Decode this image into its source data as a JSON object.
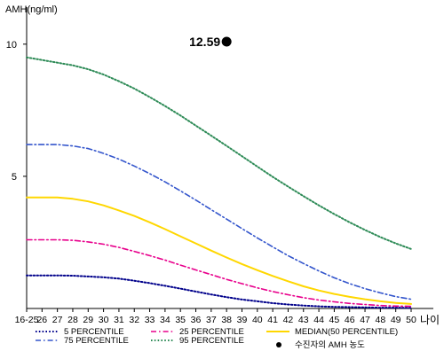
{
  "chart_data": {
    "type": "line",
    "ylabel": "AMH(ng/ml)",
    "xlabel": "나이",
    "categories": [
      "16-25",
      "26",
      "27",
      "28",
      "29",
      "30",
      "31",
      "32",
      "33",
      "34",
      "35",
      "36",
      "37",
      "38",
      "39",
      "40",
      "41",
      "42",
      "43",
      "44",
      "45",
      "46",
      "47",
      "48",
      "49",
      "50"
    ],
    "y_ticks": [
      5,
      10
    ],
    "ylim": [
      0,
      11
    ],
    "grid": false,
    "legend_position": "bottom",
    "series": [
      {
        "name": "5 PERCENTILE",
        "color": "#00008B",
        "dash": "dot",
        "values": [
          1.25,
          1.25,
          1.25,
          1.24,
          1.21,
          1.18,
          1.13,
          1.05,
          0.96,
          0.86,
          0.75,
          0.64,
          0.53,
          0.43,
          0.34,
          0.27,
          0.2,
          0.15,
          0.11,
          0.08,
          0.06,
          0.05,
          0.04,
          0.03,
          0.03,
          0.02
        ]
      },
      {
        "name": "25 PERCENTILE",
        "color": "#E8008C",
        "dash": "dashdot",
        "values": [
          2.6,
          2.6,
          2.6,
          2.58,
          2.52,
          2.43,
          2.31,
          2.16,
          2.0,
          1.83,
          1.64,
          1.46,
          1.28,
          1.1,
          0.94,
          0.78,
          0.64,
          0.52,
          0.41,
          0.32,
          0.25,
          0.19,
          0.15,
          0.11,
          0.09,
          0.08
        ]
      },
      {
        "name": "MEDIAN(50 PERCENTILE)",
        "color": "#FFD700",
        "dash": "solid",
        "values": [
          4.2,
          4.2,
          4.2,
          4.15,
          4.05,
          3.9,
          3.71,
          3.5,
          3.26,
          3.0,
          2.73,
          2.46,
          2.19,
          1.93,
          1.68,
          1.45,
          1.23,
          1.03,
          0.84,
          0.68,
          0.55,
          0.44,
          0.35,
          0.27,
          0.21,
          0.17
        ]
      },
      {
        "name": "75 PERCENTILE",
        "color": "#3355CC",
        "dash": "dashdot",
        "values": [
          6.2,
          6.2,
          6.2,
          6.15,
          6.05,
          5.87,
          5.65,
          5.39,
          5.1,
          4.79,
          4.45,
          4.1,
          3.74,
          3.38,
          3.02,
          2.67,
          2.33,
          2.0,
          1.7,
          1.42,
          1.16,
          0.94,
          0.75,
          0.59,
          0.45,
          0.35
        ]
      },
      {
        "name": "95 PERCENTILE",
        "color": "#2E8B57",
        "dash": "dot",
        "values": [
          9.5,
          9.4,
          9.3,
          9.2,
          9.05,
          8.85,
          8.6,
          8.32,
          8.0,
          7.66,
          7.3,
          6.92,
          6.54,
          6.15,
          5.76,
          5.37,
          4.98,
          4.61,
          4.25,
          3.9,
          3.57,
          3.26,
          2.97,
          2.7,
          2.46,
          2.25
        ]
      }
    ],
    "annotation": {
      "label": "12.59",
      "category": "38",
      "legend_label": "수진자의 AMH 농도"
    }
  }
}
